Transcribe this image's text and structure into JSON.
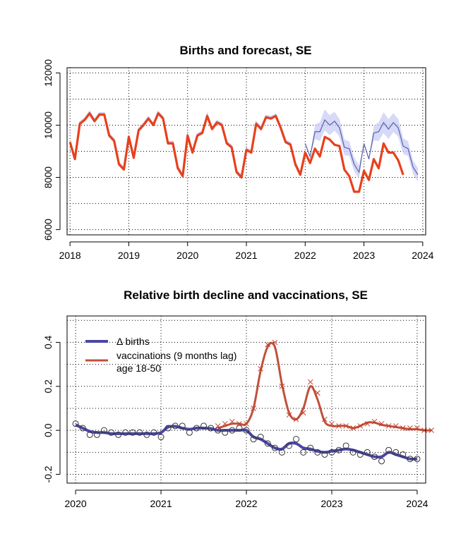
{
  "chart_data": [
    {
      "type": "line",
      "title": "Births and forecast, SE",
      "xlabel": "",
      "ylabel": "",
      "xlim": [
        2017.95,
        2024.05
      ],
      "ylim": [
        5800,
        12200
      ],
      "grid": true,
      "x_ticks": [
        2018,
        2019,
        2020,
        2021,
        2022,
        2023,
        2024
      ],
      "x_tick_labels": [
        "2018",
        "2019",
        "2020",
        "2021",
        "2022",
        "2023",
        "2024"
      ],
      "y_ticks": [
        6000,
        8000,
        10000,
        12000
      ],
      "y_tick_labels": [
        "6000",
        "8000",
        "10000",
        "12000"
      ],
      "colors": {
        "observed": "#e8401c",
        "forecast": "#5a5fae",
        "band": "#c8ccf4"
      },
      "series": [
        {
          "role": "observed",
          "start_year": 2018,
          "start_month": 1,
          "values": [
            9350,
            8700,
            10050,
            10200,
            10450,
            10150,
            10400,
            10400,
            9600,
            9400,
            8500,
            8300,
            9550,
            8750,
            9800,
            10000,
            10250,
            10000,
            10450,
            10250,
            9300,
            9300,
            8350,
            8050,
            9600,
            8950,
            9600,
            9700,
            10350,
            9850,
            10100,
            10000,
            9300,
            9150,
            8200,
            8000,
            9050,
            8950,
            10050,
            9850,
            10300,
            10250,
            10350,
            9900,
            9350,
            9250,
            8500,
            8100,
            8950,
            8550,
            9100,
            8800,
            9550,
            9450,
            9250,
            9200,
            8300,
            8050,
            7450,
            7450,
            8250,
            7900,
            8700,
            8350,
            9300,
            8950,
            8950,
            8650,
            8100
          ]
        },
        {
          "role": "forecast",
          "start_year": 2022,
          "start_month": 1,
          "values": [
            9300,
            8800,
            9750,
            9750,
            10200,
            10000,
            10150,
            9900,
            9150,
            9100,
            8500,
            8200,
            9300,
            8700,
            9700,
            9750,
            10100,
            9850,
            10100,
            9900,
            9200,
            9100,
            8400,
            8100
          ],
          "band_width": [
            0,
            0,
            280,
            360,
            400,
            380,
            360,
            340,
            300,
            280,
            260,
            260,
            0,
            0,
            280,
            360,
            400,
            380,
            360,
            340,
            300,
            280,
            260,
            260
          ]
        }
      ]
    },
    {
      "type": "line",
      "title": "Relative birth decline and vaccinations, SE",
      "xlabel": "",
      "ylabel": "",
      "xlim": [
        2019.9,
        2024.1
      ],
      "ylim": [
        -0.24,
        0.52
      ],
      "grid": true,
      "x_ticks": [
        2020,
        2021,
        2022,
        2023,
        2024
      ],
      "x_tick_labels": [
        "2020",
        "2021",
        "2022",
        "2023",
        "2024"
      ],
      "y_ticks": [
        -0.2,
        0.0,
        0.2,
        0.4
      ],
      "y_tick_labels": [
        "-0.2",
        "0.0",
        "0.2",
        "0.4"
      ],
      "legend": {
        "position": "top-left",
        "entries": [
          "Δ births",
          "vaccinations (9 months lag)",
          "age 18-50"
        ]
      },
      "colors": {
        "births": "#4a46a4",
        "vaccinations": "#c0503a",
        "vacc_marker": "#c83a2a"
      },
      "series": [
        {
          "name": "Δ births",
          "start_year": 2020,
          "start_month": 1,
          "points": [
            0.03,
            0.01,
            -0.02,
            -0.02,
            0.0,
            -0.01,
            -0.02,
            -0.01,
            -0.01,
            -0.01,
            -0.02,
            -0.01,
            -0.03,
            0.01,
            0.02,
            0.02,
            -0.01,
            0.01,
            0.02,
            0.01,
            0.0,
            -0.01,
            0.0,
            0.01,
            0.0,
            -0.04,
            -0.03,
            -0.06,
            -0.08,
            -0.1,
            -0.07,
            -0.04,
            -0.1,
            -0.08,
            -0.1,
            -0.11,
            -0.1,
            -0.09,
            -0.07,
            -0.1,
            -0.11,
            -0.1,
            -0.12,
            -0.14,
            -0.09,
            -0.1,
            -0.11,
            -0.13,
            -0.13
          ],
          "smooth": [
            0.025,
            0.01,
            -0.005,
            -0.01,
            -0.01,
            -0.015,
            -0.015,
            -0.015,
            -0.015,
            -0.015,
            -0.015,
            -0.015,
            -0.01,
            0.015,
            0.018,
            0.01,
            0.005,
            0.01,
            0.01,
            0.008,
            0.0,
            0.0,
            0.0,
            0.0,
            0.0,
            -0.03,
            -0.04,
            -0.06,
            -0.08,
            -0.085,
            -0.06,
            -0.06,
            -0.08,
            -0.085,
            -0.095,
            -0.1,
            -0.095,
            -0.09,
            -0.085,
            -0.09,
            -0.1,
            -0.11,
            -0.12,
            -0.12,
            -0.1,
            -0.11,
            -0.12,
            -0.13,
            -0.13
          ]
        },
        {
          "name": "vaccinations (9 months lag)",
          "start_year": 2021,
          "start_month": 9,
          "points": [
            0.02,
            0.03,
            0.04,
            0.03,
            0.03,
            0.1,
            0.28,
            0.39,
            0.4,
            0.2,
            0.07,
            0.05,
            0.08,
            0.22,
            0.17,
            0.05,
            0.03,
            0.02,
            0.02,
            0.01,
            0.02,
            0.03,
            0.04,
            0.03,
            0.02,
            0.02,
            0.01,
            0.01,
            0.01,
            0.0,
            0.0
          ],
          "smooth": [
            0.01,
            0.02,
            0.03,
            0.03,
            0.03,
            0.1,
            0.27,
            0.38,
            0.38,
            0.21,
            0.08,
            0.05,
            0.1,
            0.2,
            0.14,
            0.04,
            0.02,
            0.02,
            0.02,
            0.01,
            0.02,
            0.035,
            0.035,
            0.025,
            0.02,
            0.015,
            0.01,
            0.005,
            0.005,
            0.0,
            0.0
          ]
        }
      ]
    }
  ]
}
